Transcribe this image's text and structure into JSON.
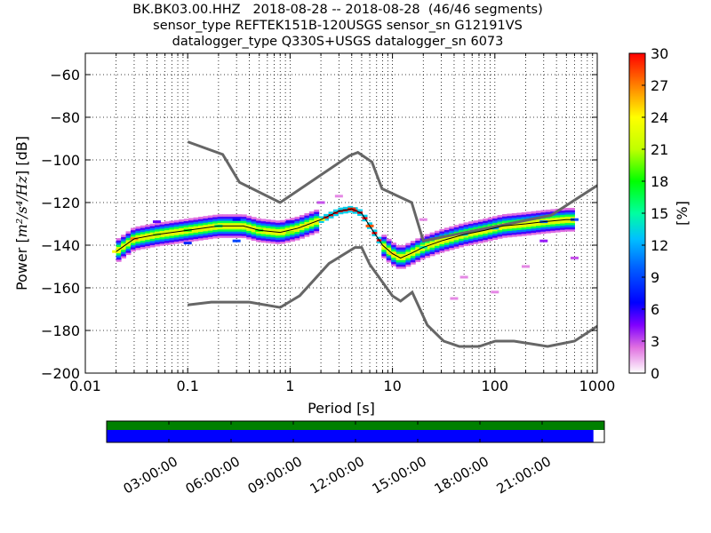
{
  "title_lines": [
    "BK.BK03.00.HHZ   2018-08-28 -- 2018-08-28  (46/46 segments)",
    "sensor_type REFTEK151B-120USGS sensor_sn G12191VS",
    "datalogger_type Q330S+USGS datalogger_sn 6073"
  ],
  "chart_data": {
    "type": "heatmap",
    "xlabel": "Period [s]",
    "ylabel_prefix": "Power [",
    "ylabel_math": "m²/s⁴/Hz",
    "ylabel_suffix": "] [dB]",
    "x_scale": "log",
    "xlim": [
      0.01,
      1000
    ],
    "ylim": [
      -200,
      -50
    ],
    "x_ticks": [
      0.01,
      0.1,
      1,
      10,
      100,
      1000
    ],
    "x_tick_labels": [
      "0.01",
      "0.1",
      "1",
      "10",
      "100",
      "1000"
    ],
    "y_ticks": [
      -200,
      -180,
      -160,
      -140,
      -120,
      -100,
      -80,
      -60
    ],
    "y_tick_labels": [
      "−200",
      "−180",
      "−160",
      "−140",
      "−120",
      "−100",
      "−80",
      "−60"
    ],
    "grid": "dotted",
    "colorbar": {
      "label": "[%]",
      "min": 0,
      "max": 30,
      "ticks": [
        0,
        3,
        6,
        9,
        12,
        15,
        18,
        21,
        24,
        27,
        30
      ],
      "tick_labels": [
        "0",
        "3",
        "6",
        "9",
        "12",
        "15",
        "18",
        "21",
        "24",
        "27",
        "30"
      ]
    },
    "noise_models": [
      {
        "name": "high",
        "x": [
          0.1,
          0.22,
          0.32,
          0.8,
          3.8,
          4.6,
          6.3,
          7.9,
          15.4,
          20,
          354,
          1000
        ],
        "y": [
          -91.5,
          -97.4,
          -110.5,
          -120,
          -98,
          -96.5,
          -101,
          -113.5,
          -120,
          -138,
          -126,
          -112
        ]
      },
      {
        "name": "low",
        "x": [
          0.1,
          0.17,
          0.4,
          0.8,
          1.24,
          2.4,
          4.3,
          5,
          6,
          10,
          12,
          15.6,
          21.9,
          31.6,
          45,
          70,
          101,
          154,
          328,
          600,
          1000
        ],
        "y": [
          -168,
          -166.7,
          -166.7,
          -169.2,
          -163.7,
          -148.6,
          -141.1,
          -141.1,
          -149,
          -163.8,
          -166.2,
          -162.1,
          -177.5,
          -185,
          -187.5,
          -187.5,
          -185,
          -185,
          -187.5,
          -185,
          -178
        ]
      }
    ],
    "mode_line": {
      "x": [
        0.02,
        0.03,
        0.05,
        0.1,
        0.2,
        0.35,
        0.5,
        0.8,
        1.2,
        2,
        3,
        4,
        5,
        6,
        8,
        10,
        12,
        15,
        20,
        30,
        50,
        80,
        120,
        200,
        300,
        500,
        600
      ],
      "y": [
        -143,
        -137,
        -135,
        -133,
        -131,
        -131,
        -133,
        -134,
        -132,
        -128,
        -124,
        -123,
        -125,
        -131,
        -140,
        -144,
        -146,
        -144,
        -141,
        -138,
        -135,
        -133,
        -131,
        -130,
        -129,
        -128,
        -128
      ]
    },
    "heatmap_cells": [
      {
        "x": 0.02,
        "y": -143,
        "pct": 24
      },
      {
        "x": 0.03,
        "y": -137,
        "pct": 27
      },
      {
        "x": 0.05,
        "y": -135,
        "pct": 20
      },
      {
        "x": 0.1,
        "y": -133,
        "pct": 18
      },
      {
        "x": 0.2,
        "y": -131,
        "pct": 16
      },
      {
        "x": 0.5,
        "y": -133,
        "pct": 18
      },
      {
        "x": 1,
        "y": -134,
        "pct": 20
      },
      {
        "x": 2,
        "y": -128,
        "pct": 24
      },
      {
        "x": 4,
        "y": -123,
        "pct": 29
      },
      {
        "x": 6,
        "y": -131,
        "pct": 28
      },
      {
        "x": 10,
        "y": -144,
        "pct": 25
      },
      {
        "x": 20,
        "y": -141,
        "pct": 15
      },
      {
        "x": 50,
        "y": -135,
        "pct": 14
      },
      {
        "x": 100,
        "y": -132,
        "pct": 12
      },
      {
        "x": 300,
        "y": -129,
        "pct": 10
      },
      {
        "x": 600,
        "y": -128,
        "pct": 9
      },
      {
        "x": 0.05,
        "y": -129,
        "pct": 5
      },
      {
        "x": 0.1,
        "y": -139,
        "pct": 8
      },
      {
        "x": 0.3,
        "y": -128,
        "pct": 7
      },
      {
        "x": 0.3,
        "y": -138,
        "pct": 9
      },
      {
        "x": 1,
        "y": -129,
        "pct": 6
      },
      {
        "x": 2,
        "y": -120,
        "pct": 3
      },
      {
        "x": 3,
        "y": -117,
        "pct": 2
      },
      {
        "x": 20,
        "y": -128,
        "pct": 2
      },
      {
        "x": 50,
        "y": -155,
        "pct": 2
      },
      {
        "x": 100,
        "y": -162,
        "pct": 2
      },
      {
        "x": 200,
        "y": -150,
        "pct": 2
      },
      {
        "x": 600,
        "y": -146,
        "pct": 3
      },
      {
        "x": 300,
        "y": -138,
        "pct": 4
      },
      {
        "x": 40,
        "y": -165,
        "pct": 2
      }
    ]
  },
  "timeline": {
    "tick_labels": [
      "03:00:00",
      "06:00:00",
      "09:00:00",
      "12:00:00",
      "15:00:00",
      "18:00:00",
      "21:00:00"
    ],
    "upper_bar_color": "#008000",
    "lower_bar_color": "#0000ff",
    "coverage_fraction": 0.978
  }
}
